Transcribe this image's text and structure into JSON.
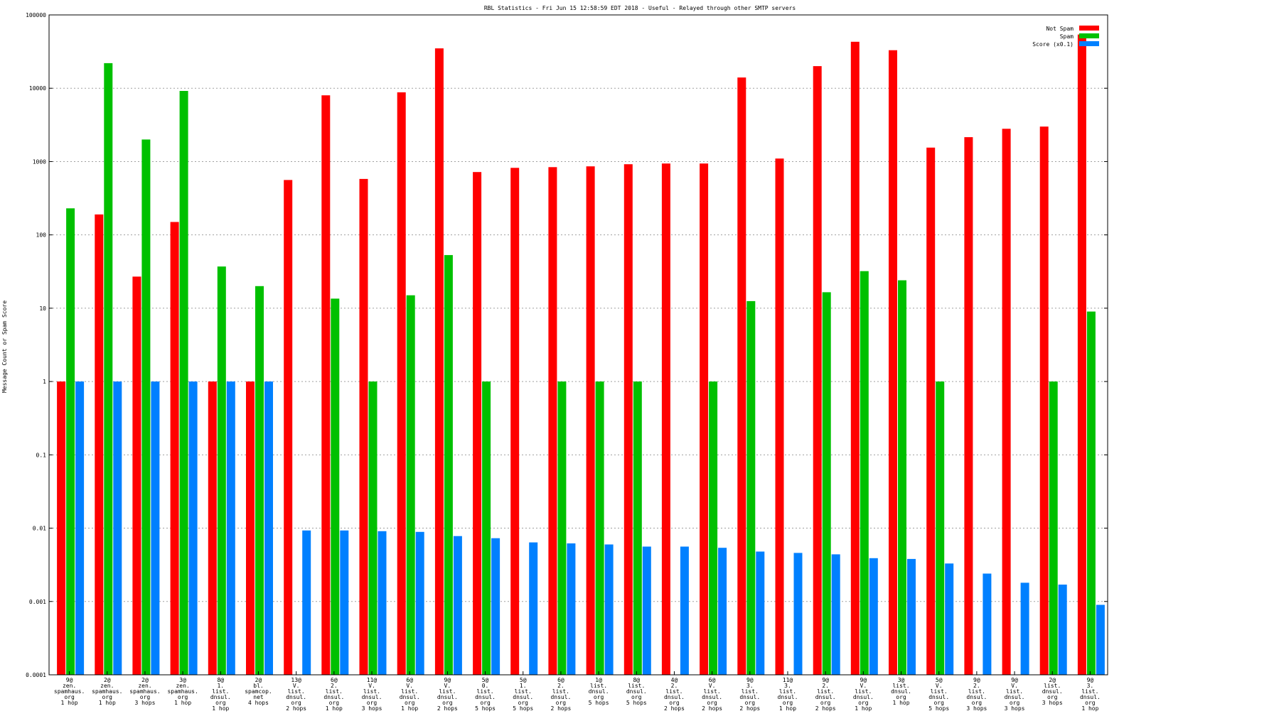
{
  "chart_data": {
    "type": "bar",
    "title": "RBL Statistics - Fri Jun 15 12:58:59 EDT 2018 - Useful - Relayed through other SMTP servers",
    "ylabel": "Message Count or Spam Score",
    "xlabel": "",
    "yscale": "log",
    "ylim": [
      0.0001,
      100000
    ],
    "yticks": [
      "0.0001",
      "0.001",
      "0.01",
      "0.1",
      "1",
      "10",
      "100",
      "1000",
      "10000",
      "100000"
    ],
    "grid": true,
    "legend_position": "top-right",
    "categories": [
      "9@ zen. spamhaus. org 1 hop",
      "2@ zen. spamhaus. org 1 hop",
      "2@ zen. spamhaus. org 3 hops",
      "3@ zen. spamhaus. org 1 hop",
      "8@ 1. list. dnsul. org 1 hop",
      "2@ bl. spamcop. net 4 hops",
      "13@ V. list. dnsul. org 2 hops",
      "6@ 2. list. dnsul. org 1 hop",
      "11@ V. list. dnsul. org 3 hops",
      "6@ V. list. dnsul. org 1 hop",
      "9@ V. list. dnsul. org 2 hops",
      "5@ 0. list. dnsul. org 5 hops",
      "5@ 1. list. dnsul. org 5 hops",
      "6@ 2. list. dnsul. org 2 hops",
      "1@ list. dnsul. org 5 hops",
      "8@ list. dnsul. org 5 hops",
      "4@ 2. list. dnsul. org 2 hops",
      "6@ V. list. dnsul. org 2 hops",
      "9@ 3. list. dnsul. org 2 hops",
      "11@ 3. list. dnsul. org 1 hop",
      "9@ 2. list. dnsul. org 2 hops",
      "9@ V. list. dnsul. org 1 hop",
      "3@ list. dnsul. org 1 hop",
      "5@ V. list. dnsul. org 5 hops",
      "9@ 2. list. dnsul. org 3 hops",
      "9@ V. list. dnsul. org 3 hops",
      "2@ list. dnsul. org 3 hops",
      "9@ 3. list. dnsul. org 1 hop"
    ],
    "series": [
      {
        "name": "Not Spam",
        "color": "#ff0000",
        "values": [
          1,
          190,
          27,
          150,
          1,
          1,
          560,
          8000,
          580,
          8800,
          35000,
          720,
          820,
          840,
          860,
          920,
          940,
          940,
          14000,
          1100,
          20000,
          43000,
          33000,
          1550,
          2150,
          2800,
          3000,
          54000
        ]
      },
      {
        "name": "Spam",
        "color": "#00c000",
        "values": [
          230,
          22000,
          2000,
          9200,
          37,
          20,
          0,
          13.5,
          1,
          15,
          53,
          1,
          0,
          1,
          1,
          1,
          0,
          1,
          12.5,
          0,
          16.5,
          32,
          24,
          1,
          0,
          0,
          1,
          9
        ]
      },
      {
        "name": "Score (x0.1)",
        "color": "#0080ff",
        "values": [
          1,
          1,
          1,
          1,
          1,
          1,
          0.0093,
          0.0093,
          0.0091,
          0.0089,
          0.0078,
          0.0073,
          0.0064,
          0.0062,
          0.006,
          0.0056,
          0.0056,
          0.0054,
          0.0048,
          0.0046,
          0.0044,
          0.0039,
          0.0038,
          0.0033,
          0.0024,
          0.0018,
          0.0017,
          0.0009
        ]
      }
    ]
  }
}
